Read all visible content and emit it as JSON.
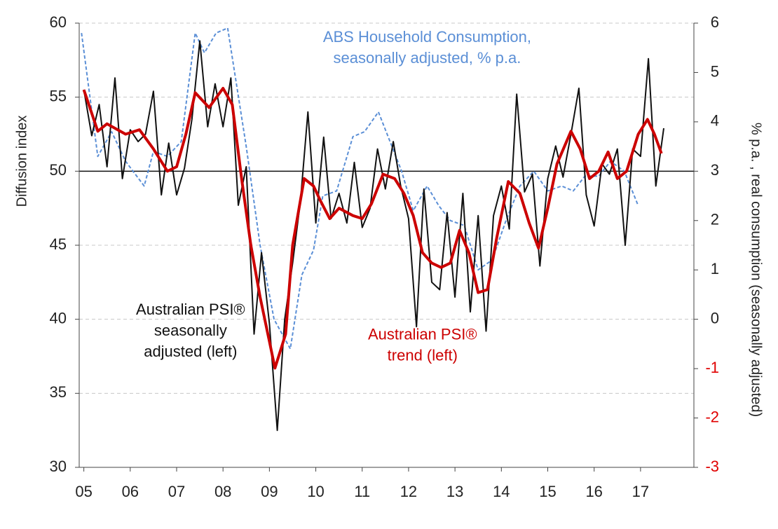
{
  "chart_data": {
    "type": "line",
    "y_label": "Diffusion index",
    "y2_label": "% p.a. , real consumption (seasonally adjusted)",
    "xlim": [
      2004.9,
      2018.15
    ],
    "xticks": [
      {
        "value": 2005,
        "label": "05"
      },
      {
        "value": 2006,
        "label": "06"
      },
      {
        "value": 2007,
        "label": "07"
      },
      {
        "value": 2008,
        "label": "08"
      },
      {
        "value": 2009,
        "label": "09"
      },
      {
        "value": 2010,
        "label": "10"
      },
      {
        "value": 2011,
        "label": "11"
      },
      {
        "value": 2012,
        "label": "12"
      },
      {
        "value": 2013,
        "label": "13"
      },
      {
        "value": 2014,
        "label": "14"
      },
      {
        "value": 2015,
        "label": "15"
      },
      {
        "value": 2016,
        "label": "16"
      },
      {
        "value": 2017,
        "label": "17"
      }
    ],
    "ylim": [
      30,
      60
    ],
    "yticks": [
      30,
      35,
      40,
      45,
      50,
      55,
      60
    ],
    "y2lim": [
      -3,
      6
    ],
    "y2ticks": [
      -3,
      -2,
      -1,
      0,
      1,
      2,
      3,
      4,
      5,
      6
    ],
    "negative_tick_color": "#e00000",
    "grid": true,
    "reference_line": 50,
    "series": [
      {
        "name": "Australian PSI® seasonally adjusted (left)",
        "color": "#111111",
        "width": 2,
        "dashed": false,
        "x": [
          2005.0,
          2005.17,
          2005.33,
          2005.5,
          2005.67,
          2005.83,
          2006.0,
          2006.17,
          2006.33,
          2006.5,
          2006.67,
          2006.83,
          2007.0,
          2007.17,
          2007.33,
          2007.5,
          2007.67,
          2007.83,
          2008.0,
          2008.17,
          2008.33,
          2008.5,
          2008.67,
          2008.83,
          2009.0,
          2009.17,
          2009.33,
          2009.5,
          2009.67,
          2009.83,
          2010.0,
          2010.17,
          2010.33,
          2010.5,
          2010.67,
          2010.83,
          2011.0,
          2011.17,
          2011.33,
          2011.5,
          2011.67,
          2011.83,
          2012.0,
          2012.17,
          2012.33,
          2012.5,
          2012.67,
          2012.83,
          2013.0,
          2013.17,
          2013.33,
          2013.5,
          2013.67,
          2013.83,
          2014.0,
          2014.17,
          2014.33,
          2014.5,
          2014.67,
          2014.83,
          2015.0,
          2015.17,
          2015.33,
          2015.5,
          2015.67,
          2015.83,
          2016.0,
          2016.17,
          2016.33,
          2016.5,
          2016.67,
          2016.83,
          2017.0,
          2017.17,
          2017.33,
          2017.5
        ],
        "values": [
          55.5,
          52.4,
          54.5,
          50.3,
          56.3,
          49.5,
          52.8,
          52.0,
          52.5,
          55.4,
          48.4,
          51.9,
          48.4,
          50.2,
          53.5,
          58.8,
          53.0,
          55.9,
          53.0,
          56.3,
          47.7,
          50.3,
          39.0,
          44.5,
          39.7,
          32.5,
          40.0,
          43.8,
          48.0,
          54.0,
          46.5,
          52.3,
          46.8,
          48.5,
          46.5,
          50.6,
          46.2,
          47.5,
          51.5,
          48.8,
          52.0,
          49.0,
          46.8,
          39.5,
          48.8,
          42.5,
          42.0,
          47.2,
          41.5,
          48.5,
          40.5,
          47.0,
          39.2,
          47.0,
          49.0,
          46.1,
          55.2,
          48.6,
          49.8,
          43.6,
          49.5,
          51.7,
          49.6,
          52.5,
          55.6,
          48.4,
          46.3,
          50.5,
          49.8,
          51.5,
          45.0,
          51.5,
          51.0,
          57.6,
          49.0,
          52.9
        ]
      },
      {
        "name": "Australian PSI® trend (left)",
        "color": "#cc0000",
        "width": 4,
        "dashed": false,
        "x": [
          2005.0,
          2005.3,
          2005.5,
          2005.9,
          2006.2,
          2006.5,
          2006.8,
          2007.0,
          2007.2,
          2007.4,
          2007.7,
          2008.0,
          2008.2,
          2008.4,
          2008.6,
          2008.8,
          2009.0,
          2009.12,
          2009.35,
          2009.5,
          2009.75,
          2009.95,
          2010.1,
          2010.3,
          2010.5,
          2010.8,
          2011.0,
          2011.2,
          2011.45,
          2011.7,
          2011.9,
          2012.1,
          2012.3,
          2012.5,
          2012.7,
          2012.9,
          2013.1,
          2013.3,
          2013.5,
          2013.7,
          2013.9,
          2014.15,
          2014.4,
          2014.6,
          2014.8,
          2015.0,
          2015.2,
          2015.5,
          2015.7,
          2015.9,
          2016.1,
          2016.3,
          2016.5,
          2016.7,
          2016.95,
          2017.15,
          2017.3,
          2017.45
        ],
        "values": [
          55.5,
          52.7,
          53.2,
          52.5,
          52.8,
          51.5,
          50.0,
          50.3,
          52.5,
          55.3,
          54.3,
          55.6,
          54.5,
          49.5,
          45.0,
          41.5,
          38.5,
          36.7,
          39.0,
          45.0,
          49.5,
          49.0,
          48.0,
          46.8,
          47.5,
          47.0,
          46.8,
          47.8,
          49.8,
          49.5,
          48.5,
          47.0,
          44.5,
          43.8,
          43.5,
          43.8,
          46.0,
          44.5,
          41.8,
          42.0,
          45.5,
          49.3,
          48.5,
          46.5,
          44.8,
          47.5,
          50.5,
          52.7,
          51.5,
          49.5,
          50.0,
          51.3,
          49.5,
          50.0,
          52.5,
          53.5,
          52.5,
          51.2
        ]
      },
      {
        "name": "ABS Household Consumption, seasonally adjusted, % p.a.",
        "color": "#5b8fd6",
        "width": 2,
        "dashed": true,
        "axis": "y2",
        "x": [
          2004.95,
          2005.3,
          2005.6,
          2005.9,
          2006.3,
          2006.5,
          2006.8,
          2007.1,
          2007.4,
          2007.6,
          2007.85,
          2008.1,
          2008.5,
          2008.8,
          2009.1,
          2009.45,
          2009.7,
          2009.95,
          2010.15,
          2010.45,
          2010.8,
          2011.05,
          2011.35,
          2011.6,
          2011.85,
          2012.1,
          2012.4,
          2012.65,
          2012.9,
          2013.2,
          2013.5,
          2013.8,
          2014.1,
          2014.4,
          2014.7,
          2015.0,
          2015.3,
          2015.55,
          2015.8,
          2016.1,
          2016.35,
          2016.65,
          2016.95
        ],
        "values": [
          5.8,
          3.3,
          3.8,
          3.2,
          2.7,
          3.4,
          3.3,
          3.6,
          5.8,
          5.4,
          5.8,
          5.9,
          3.5,
          1.5,
          0.0,
          -0.6,
          0.9,
          1.4,
          2.5,
          2.6,
          3.7,
          3.8,
          4.2,
          3.6,
          3.0,
          2.2,
          2.7,
          2.3,
          2.0,
          1.9,
          1.0,
          1.2,
          2.0,
          2.7,
          3.0,
          2.6,
          2.7,
          2.6,
          2.9,
          2.9,
          3.2,
          3.0,
          2.3
        ]
      }
    ],
    "annotations": [
      {
        "lines": [
          "Australian PSI®",
          "seasonally",
          "adjusted (left)"
        ],
        "color": "#111111",
        "x": 2007.3,
        "y": 40.6
      },
      {
        "lines": [
          "Australian PSI®",
          "trend (left)"
        ],
        "color": "#cc0000",
        "x": 2012.3,
        "y": 38.9
      },
      {
        "lines": [
          "ABS Household Consumption,",
          "seasonally adjusted, % p.a."
        ],
        "color": "#5b8fd6",
        "x": 2012.4,
        "y": 59.0
      }
    ]
  }
}
